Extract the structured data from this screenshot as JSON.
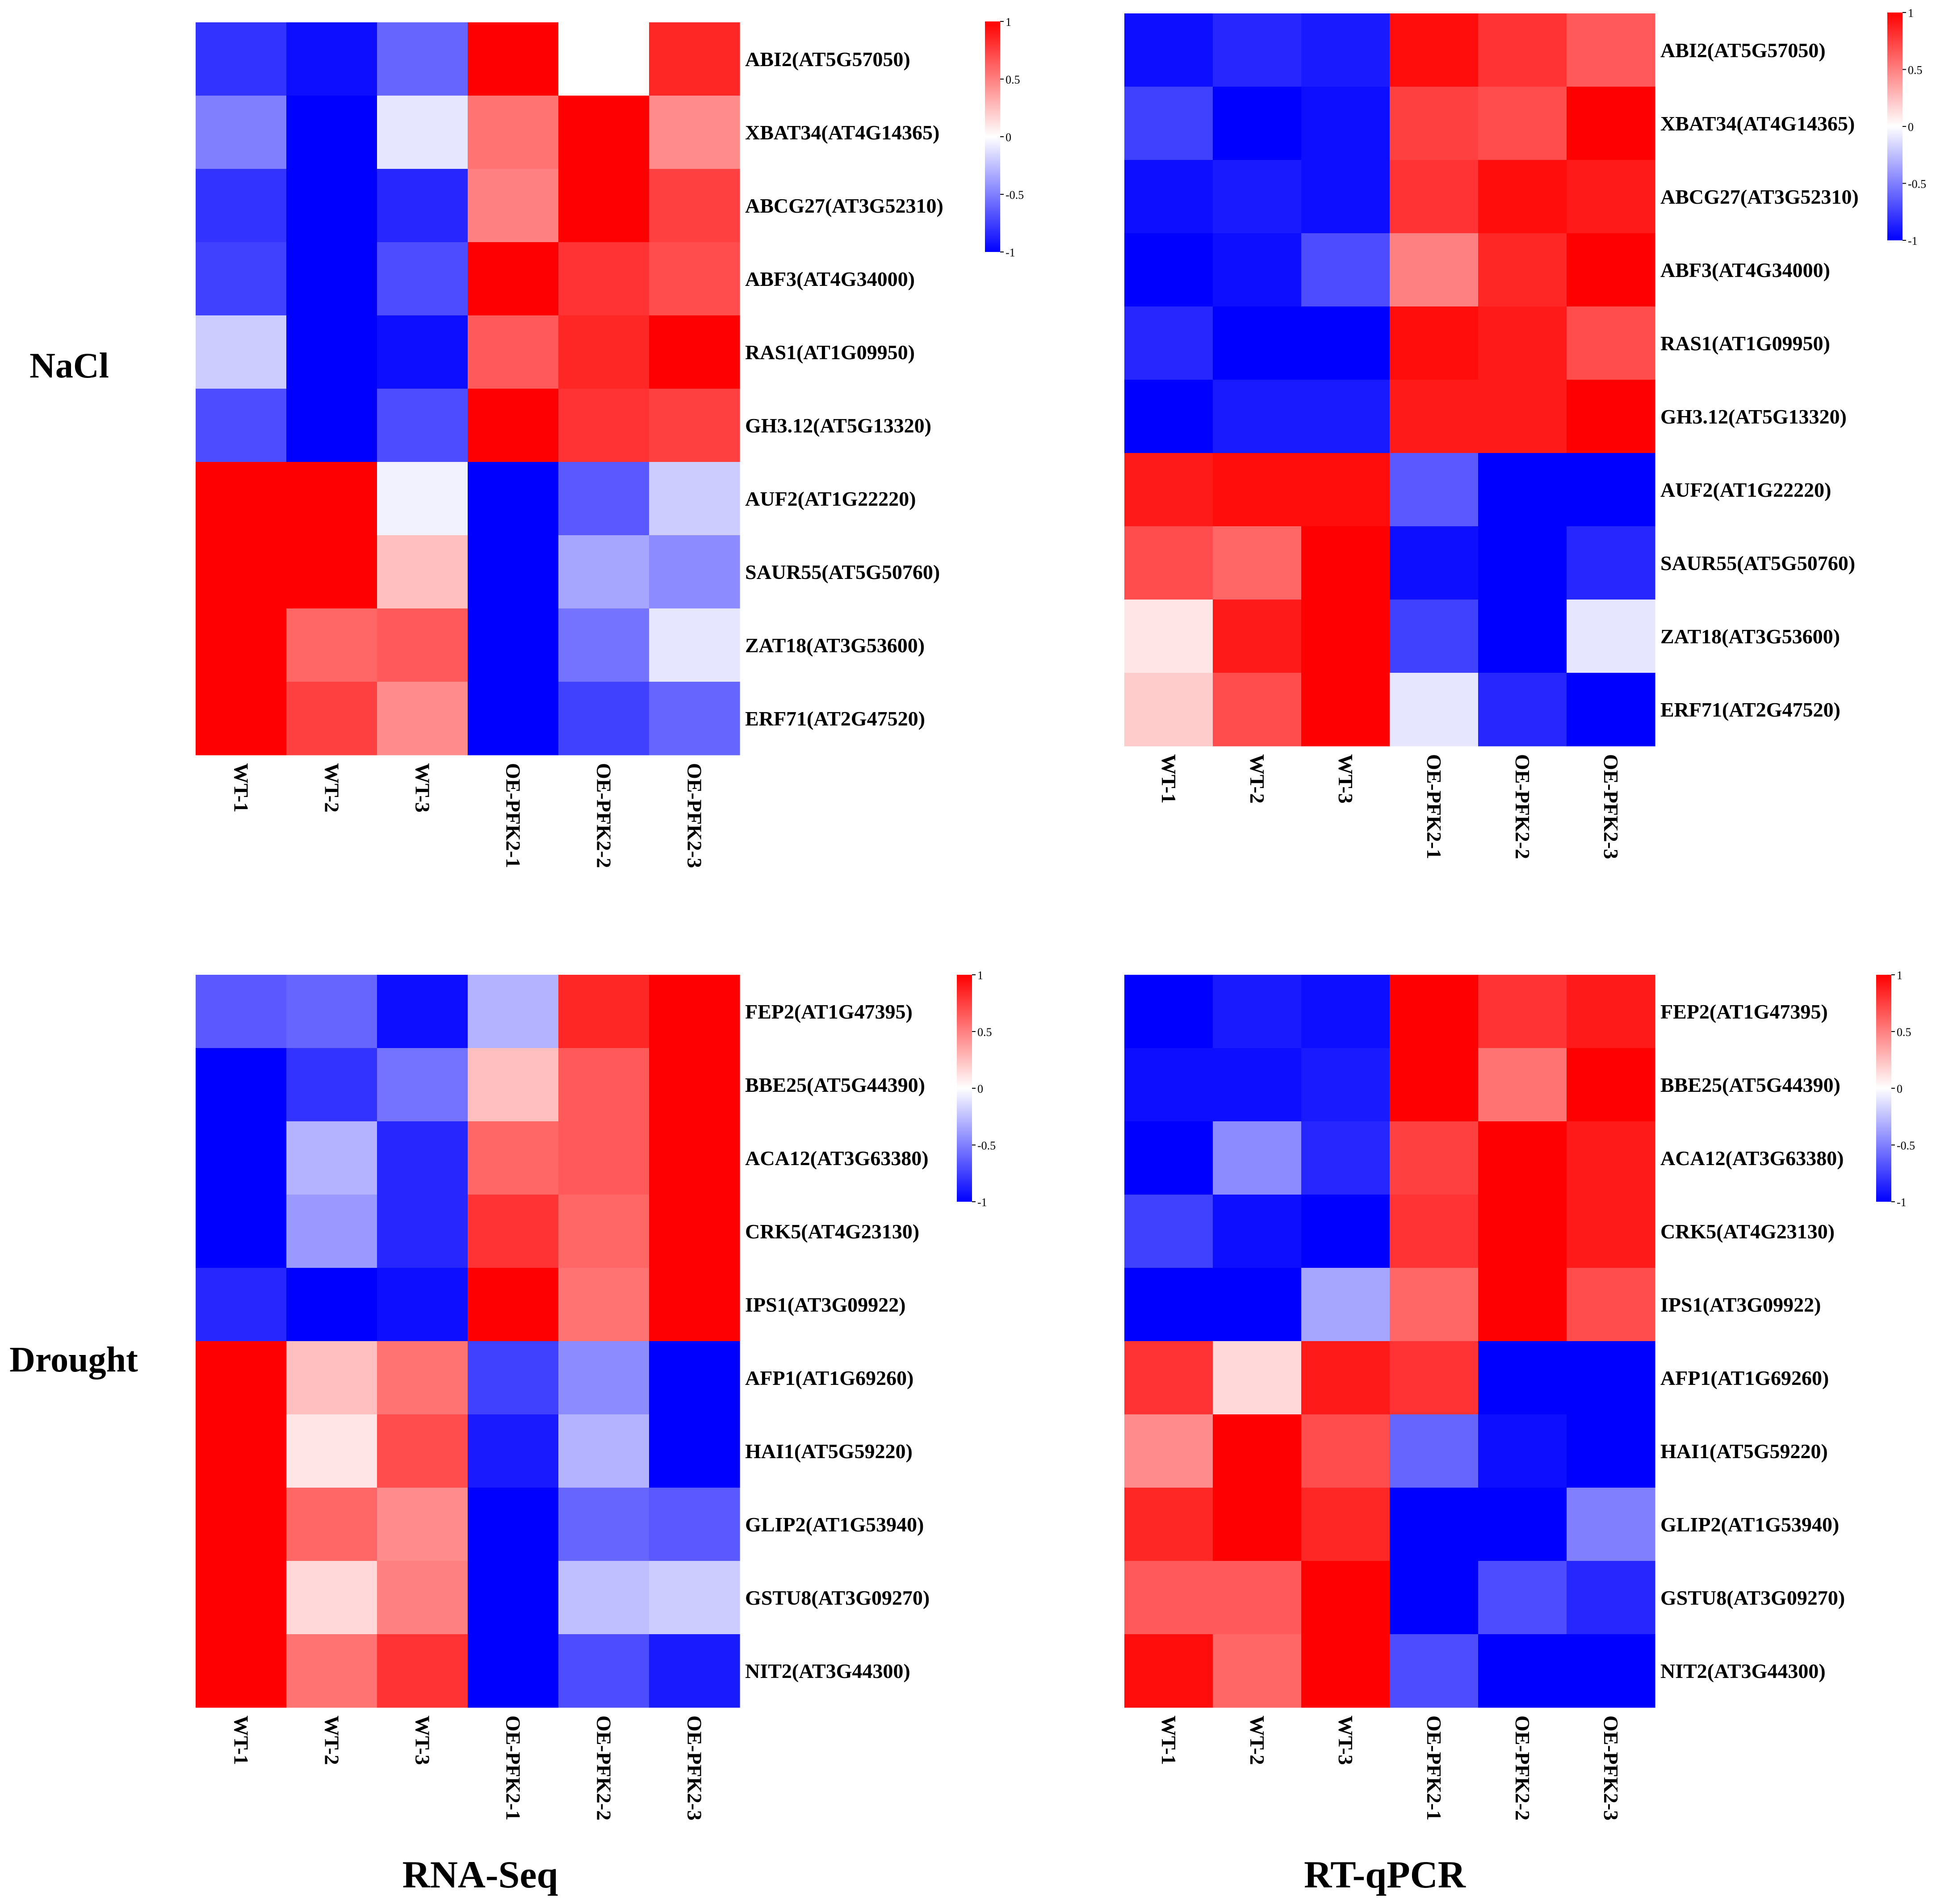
{
  "figure": {
    "row_labels": {
      "nacl": "NaCl",
      "drought": "Drought"
    },
    "col_labels": {
      "rnaseq": "RNA-Seq",
      "rtqpcr": "RT-qPCR"
    }
  },
  "colors": {
    "low": "#0000ff",
    "mid": "#ffffff",
    "high": "#ff0000"
  },
  "chart_data": [
    {
      "type": "heatmap",
      "title": "NaCl / RNA-Seq",
      "columns": [
        "WT-1",
        "WT-2",
        "WT-3",
        "OE-PFK2-1",
        "OE-PFK2-2",
        "OE-PFK2-3"
      ],
      "rows": [
        "ABI2(AT5G57050)",
        "XBAT34(AT4G14365)",
        "ABCG27(AT3G52310)",
        "ABF3(AT4G34000)",
        "RAS1(AT1G09950)",
        "GH3.12(AT5G13320)",
        "AUF2(AT1G22220)",
        "SAUR55(AT5G50760)",
        "ZAT18(AT3G53600)",
        "ERF71(AT2G47520)"
      ],
      "values": [
        [
          -0.8,
          -0.95,
          -0.6,
          1.0,
          0.0,
          0.85
        ],
        [
          -0.5,
          -1.0,
          -0.1,
          0.55,
          1.0,
          0.45
        ],
        [
          -0.8,
          -1.0,
          -0.85,
          0.5,
          1.0,
          0.75
        ],
        [
          -0.75,
          -1.0,
          -0.7,
          1.0,
          0.8,
          0.7
        ],
        [
          -0.2,
          -1.0,
          -0.95,
          0.65,
          0.85,
          1.0
        ],
        [
          -0.7,
          -1.0,
          -0.7,
          1.0,
          0.8,
          0.75
        ],
        [
          1.0,
          1.0,
          -0.05,
          -1.0,
          -0.65,
          -0.2
        ],
        [
          1.0,
          1.0,
          0.25,
          -1.0,
          -0.35,
          -0.45
        ],
        [
          1.0,
          0.6,
          0.65,
          -1.0,
          -0.55,
          -0.1
        ],
        [
          1.0,
          0.75,
          0.45,
          -1.0,
          -0.75,
          -0.6
        ]
      ],
      "colorbar": {
        "range": [
          -1,
          1
        ],
        "ticks": [
          "1",
          "0.5",
          "0",
          "-0.5",
          "-1"
        ]
      }
    },
    {
      "type": "heatmap",
      "title": "NaCl / RT-qPCR",
      "columns": [
        "WT-1",
        "WT-2",
        "WT-3",
        "OE-PFK2-1",
        "OE-PFK2-2",
        "OE-PFK2-3"
      ],
      "rows": [
        "ABI2(AT5G57050)",
        "XBAT34(AT4G14365)",
        "ABCG27(AT3G52310)",
        "ABF3(AT4G34000)",
        "RAS1(AT1G09950)",
        "GH3.12(AT5G13320)",
        "AUF2(AT1G22220)",
        "SAUR55(AT5G50760)",
        "ZAT18(AT3G53600)",
        "ERF71(AT2G47520)"
      ],
      "values": [
        [
          -0.95,
          -0.85,
          -0.9,
          0.95,
          0.8,
          0.65
        ],
        [
          -0.75,
          -1.0,
          -0.95,
          0.75,
          0.7,
          1.0
        ],
        [
          -0.95,
          -0.9,
          -0.95,
          0.8,
          0.95,
          0.9
        ],
        [
          -1.0,
          -0.95,
          -0.7,
          0.5,
          0.85,
          1.0
        ],
        [
          -0.85,
          -1.0,
          -1.0,
          0.95,
          0.9,
          0.7
        ],
        [
          -1.0,
          -0.9,
          -0.9,
          0.9,
          0.9,
          1.0
        ],
        [
          0.9,
          0.95,
          0.95,
          -0.65,
          -1.0,
          -1.0
        ],
        [
          0.7,
          0.6,
          1.0,
          -0.95,
          -1.0,
          -0.85
        ],
        [
          0.1,
          0.9,
          1.0,
          -0.75,
          -1.0,
          -0.1
        ],
        [
          0.2,
          0.7,
          1.0,
          -0.1,
          -0.85,
          -1.0
        ]
      ],
      "colorbar": {
        "range": [
          -1,
          1
        ],
        "ticks": [
          "1",
          "0.5",
          "0",
          "-0.5",
          "-1"
        ]
      }
    },
    {
      "type": "heatmap",
      "title": "Drought / RNA-Seq",
      "columns": [
        "WT-1",
        "WT-2",
        "WT-3",
        "OE-PFK2-1",
        "OE-PFK2-2",
        "OE-PFK2-3"
      ],
      "rows": [
        "FEP2(AT1G47395)",
        "BBE25(AT5G44390)",
        "ACA12(AT3G63380)",
        "CRK5(AT4G23130)",
        "IPS1(AT3G09922)",
        "AFP1(AT1G69260)",
        "HAI1(AT5G59220)",
        "GLIP2(AT1G53940)",
        "GSTU8(AT3G09270)",
        "NIT2(AT3G44300)"
      ],
      "values": [
        [
          -0.65,
          -0.6,
          -0.95,
          -0.3,
          0.85,
          1.0
        ],
        [
          -1.0,
          -0.8,
          -0.55,
          0.25,
          0.65,
          1.0
        ],
        [
          -1.0,
          -0.3,
          -0.85,
          0.6,
          0.65,
          1.0
        ],
        [
          -1.0,
          -0.4,
          -0.85,
          0.8,
          0.6,
          1.0
        ],
        [
          -0.85,
          -1.0,
          -0.95,
          1.0,
          0.55,
          1.0
        ],
        [
          1.0,
          0.25,
          0.55,
          -0.75,
          -0.45,
          -1.0
        ],
        [
          1.0,
          0.1,
          0.7,
          -0.9,
          -0.3,
          -1.0
        ],
        [
          1.0,
          0.6,
          0.45,
          -1.0,
          -0.6,
          -0.65
        ],
        [
          1.0,
          0.15,
          0.5,
          -1.0,
          -0.25,
          -0.2
        ],
        [
          1.0,
          0.55,
          0.8,
          -1.0,
          -0.7,
          -0.9
        ]
      ],
      "colorbar": {
        "range": [
          -1,
          1
        ],
        "ticks": [
          "1",
          "0.5",
          "0",
          "-0.5",
          "-1"
        ]
      }
    },
    {
      "type": "heatmap",
      "title": "Drought / RT-qPCR",
      "columns": [
        "WT-1",
        "WT-2",
        "WT-3",
        "OE-PFK2-1",
        "OE-PFK2-2",
        "OE-PFK2-3"
      ],
      "rows": [
        "FEP2(AT1G47395)",
        "BBE25(AT5G44390)",
        "ACA12(AT3G63380)",
        "CRK5(AT4G23130)",
        "IPS1(AT3G09922)",
        "AFP1(AT1G69260)",
        "HAI1(AT5G59220)",
        "GLIP2(AT1G53940)",
        "GSTU8(AT3G09270)",
        "NIT2(AT3G44300)"
      ],
      "values": [
        [
          -1.0,
          -0.9,
          -0.95,
          1.0,
          0.8,
          0.9
        ],
        [
          -0.95,
          -0.95,
          -0.9,
          1.0,
          0.55,
          1.0
        ],
        [
          -1.0,
          -0.45,
          -0.85,
          0.75,
          1.0,
          0.9
        ],
        [
          -0.75,
          -0.95,
          -1.0,
          0.8,
          1.0,
          0.9
        ],
        [
          -1.0,
          -1.0,
          -0.35,
          0.6,
          1.0,
          0.7
        ],
        [
          0.8,
          0.15,
          0.9,
          0.8,
          -1.0,
          -1.0
        ],
        [
          0.45,
          1.0,
          0.7,
          -0.6,
          -0.95,
          -1.0
        ],
        [
          0.85,
          1.0,
          0.85,
          -1.0,
          -1.0,
          -0.5
        ],
        [
          0.65,
          0.65,
          1.0,
          -1.0,
          -0.7,
          -0.85
        ],
        [
          0.95,
          0.6,
          1.0,
          -0.7,
          -1.0,
          -1.0
        ]
      ],
      "colorbar": {
        "range": [
          -1,
          1
        ],
        "ticks": [
          "1",
          "0.5",
          "0",
          "-0.5",
          "-1"
        ]
      }
    }
  ]
}
